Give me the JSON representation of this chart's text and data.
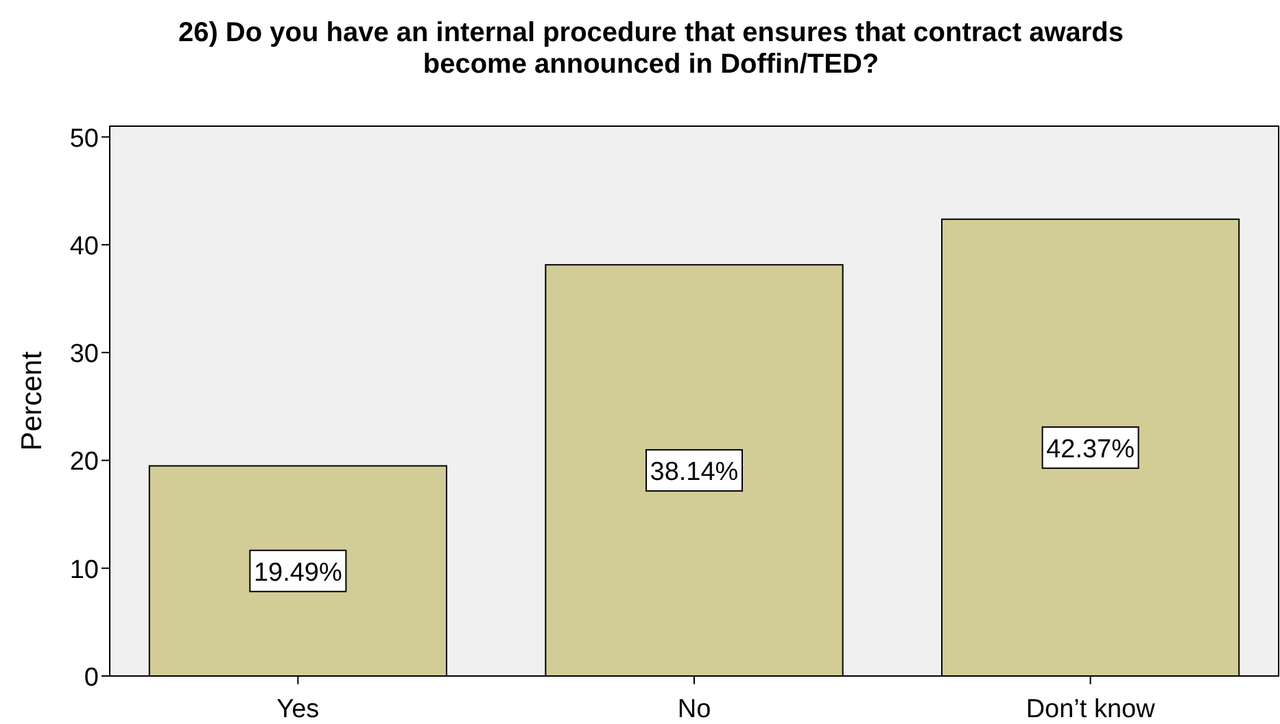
{
  "chart_data": {
    "type": "bar",
    "title": "26) Do you have an internal procedure that ensures that contract awards become announced in Doffin/TED?",
    "ylabel": "Percent",
    "categories": [
      "Yes",
      "No",
      "Don’t know"
    ],
    "values": [
      19.49,
      38.14,
      42.37
    ],
    "value_labels": [
      "19.49%",
      "38.14%",
      "42.37%"
    ],
    "color": "#d2cc96",
    "ylim": [
      0,
      51
    ],
    "yticks": [
      0,
      10,
      20,
      30,
      40,
      50
    ],
    "grid": false
  }
}
